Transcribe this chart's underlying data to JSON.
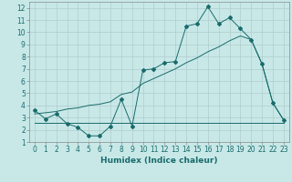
{
  "xlabel": "Humidex (Indice chaleur)",
  "xlim": [
    -0.5,
    23.5
  ],
  "ylim": [
    1,
    12.5
  ],
  "xticks": [
    0,
    1,
    2,
    3,
    4,
    5,
    6,
    7,
    8,
    9,
    10,
    11,
    12,
    13,
    14,
    15,
    16,
    17,
    18,
    19,
    20,
    21,
    22,
    23
  ],
  "yticks": [
    1,
    2,
    3,
    4,
    5,
    6,
    7,
    8,
    9,
    10,
    11,
    12
  ],
  "bg_color": "#c8e8e8",
  "grid_color": "#b0cccc",
  "line_color": "#1a6b6b",
  "line1_x": [
    0,
    1,
    2,
    3,
    4,
    5,
    6,
    7,
    8,
    9,
    10,
    11,
    12,
    13,
    14,
    15,
    16,
    17,
    18,
    19,
    20,
    21,
    22,
    23
  ],
  "line1_y": [
    3.6,
    2.9,
    3.3,
    2.5,
    2.2,
    1.5,
    1.5,
    2.3,
    4.5,
    2.3,
    6.9,
    7.0,
    7.5,
    7.6,
    10.5,
    10.7,
    12.1,
    10.7,
    11.2,
    10.3,
    9.4,
    7.4,
    4.2,
    2.8
  ],
  "line2_x": [
    0,
    1,
    2,
    3,
    4,
    5,
    6,
    7,
    8,
    9,
    10,
    11,
    12,
    13,
    14,
    15,
    16,
    17,
    18,
    19,
    20,
    21,
    22,
    23
  ],
  "line2_y": [
    3.3,
    3.4,
    3.5,
    3.7,
    3.8,
    4.0,
    4.1,
    4.3,
    4.9,
    5.1,
    5.8,
    6.2,
    6.6,
    7.0,
    7.5,
    7.9,
    8.4,
    8.8,
    9.3,
    9.7,
    9.4,
    7.4,
    4.2,
    2.8
  ],
  "line3_x": [
    0,
    1,
    2,
    3,
    4,
    5,
    6,
    7,
    8,
    9,
    10,
    11,
    12,
    13,
    14,
    15,
    16,
    17,
    18,
    19,
    20,
    21,
    22,
    23
  ],
  "line3_y": [
    2.6,
    2.6,
    2.6,
    2.6,
    2.6,
    2.6,
    2.6,
    2.6,
    2.6,
    2.6,
    2.6,
    2.6,
    2.6,
    2.6,
    2.6,
    2.6,
    2.6,
    2.6,
    2.6,
    2.6,
    2.6,
    2.6,
    2.6,
    2.6
  ],
  "tick_fontsize": 5.5,
  "xlabel_fontsize": 6.5,
  "xlabel_fontweight": "bold",
  "xlabel_color": "#1a6b6b"
}
